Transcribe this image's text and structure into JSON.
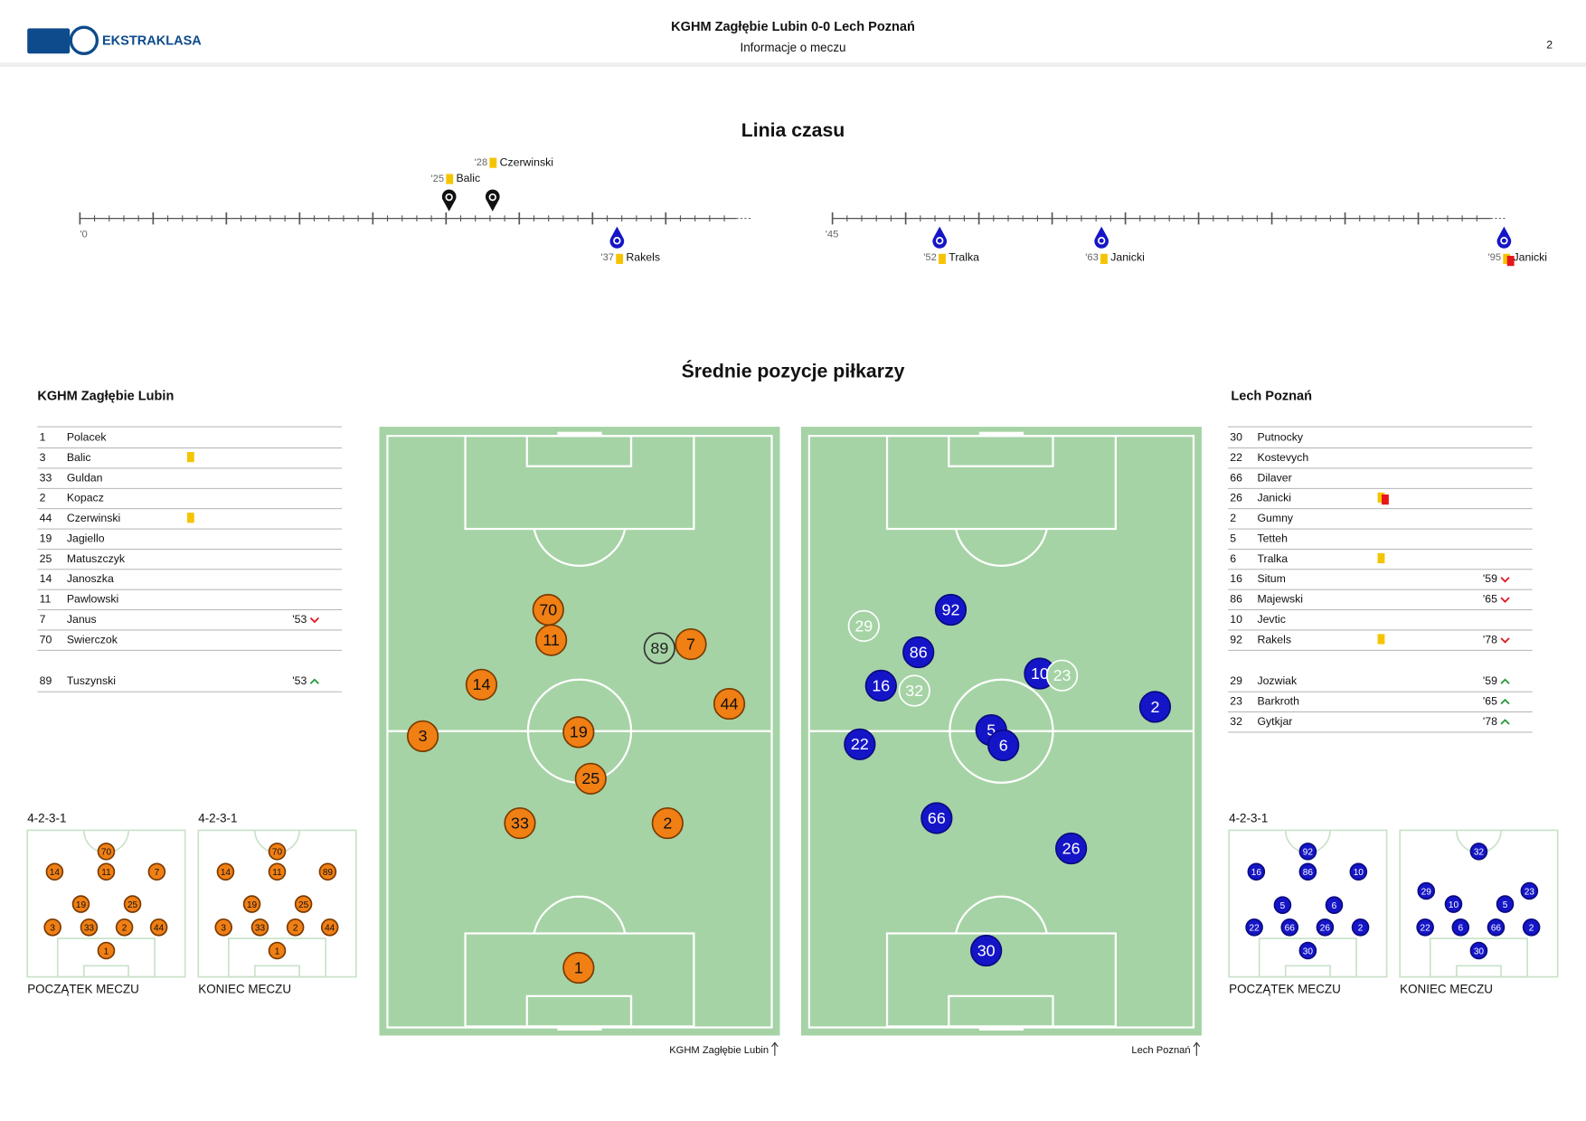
{
  "header": {
    "logo": "EKSTRAKLASA",
    "title": "KGHM Zagłębie Lubin 0-0  Lech Poznań",
    "subtitle": "Informacje o meczu",
    "page": "2"
  },
  "timeline": {
    "title": "Linia czasu",
    "first_half_start": "'0",
    "second_half_start": "'45",
    "events": [
      {
        "minute": "'25",
        "player": "Balic",
        "team": "home",
        "card": "yellow"
      },
      {
        "minute": "'28",
        "player": "Czerwinski",
        "team": "home",
        "card": "yellow"
      },
      {
        "minute": "'37",
        "player": "Rakels",
        "team": "away",
        "card": "yellow"
      },
      {
        "minute": "'52",
        "player": "Tralka",
        "team": "away",
        "card": "yellow"
      },
      {
        "minute": "'63",
        "player": "Janicki",
        "team": "away",
        "card": "yellow"
      },
      {
        "minute": "'95",
        "player": "Janicki",
        "team": "away",
        "card": "second-yellow"
      }
    ]
  },
  "positions": {
    "title": "Średnie pozycje piłkarzy",
    "home": {
      "name": "KGHM Zagłębie Lubin",
      "pitch_label": "KGHM Zagłębie Lubin",
      "starters": [
        {
          "no": "1",
          "name": "Polacek"
        },
        {
          "no": "3",
          "name": "Balic",
          "card": "yellow"
        },
        {
          "no": "33",
          "name": "Guldan"
        },
        {
          "no": "2",
          "name": "Kopacz"
        },
        {
          "no": "44",
          "name": "Czerwinski",
          "card": "yellow"
        },
        {
          "no": "19",
          "name": "Jagiello"
        },
        {
          "no": "25",
          "name": "Matuszczyk"
        },
        {
          "no": "14",
          "name": "Janoszka"
        },
        {
          "no": "11",
          "name": "Pawlowski"
        },
        {
          "no": "7",
          "name": "Janus",
          "minute": "'53",
          "sub": "out"
        },
        {
          "no": "70",
          "name": "Swierczok"
        }
      ],
      "subs": [
        {
          "no": "89",
          "name": "Tuszynski",
          "minute": "'53",
          "sub": "in"
        }
      ],
      "pitch": [
        {
          "no": "70"
        },
        {
          "no": "11"
        },
        {
          "no": "89",
          "sub": true
        },
        {
          "no": "7"
        },
        {
          "no": "14"
        },
        {
          "no": "44"
        },
        {
          "no": "3"
        },
        {
          "no": "19"
        },
        {
          "no": "25"
        },
        {
          "no": "33"
        },
        {
          "no": "2"
        },
        {
          "no": "1"
        }
      ],
      "formations": [
        {
          "formation": "4-2-3-1",
          "label": "POCZĄTEK MECZU",
          "players": [
            "70",
            "14",
            "11",
            "7",
            "19",
            "25",
            "3",
            "33",
            "2",
            "44",
            "1"
          ]
        },
        {
          "formation": "4-2-3-1",
          "label": "KONIEC MECZU",
          "players": [
            "70",
            "14",
            "11",
            "89",
            "19",
            "25",
            "3",
            "33",
            "2",
            "44",
            "1"
          ]
        }
      ]
    },
    "away": {
      "name": "Lech Poznań",
      "pitch_label": "Lech Poznań",
      "starters": [
        {
          "no": "30",
          "name": "Putnocky"
        },
        {
          "no": "22",
          "name": "Kostevych"
        },
        {
          "no": "66",
          "name": "Dilaver"
        },
        {
          "no": "26",
          "name": "Janicki",
          "card": "second-yellow"
        },
        {
          "no": "2",
          "name": "Gumny"
        },
        {
          "no": "5",
          "name": "Tetteh"
        },
        {
          "no": "6",
          "name": "Tralka",
          "card": "yellow"
        },
        {
          "no": "16",
          "name": "Situm",
          "minute": "'59",
          "sub": "out"
        },
        {
          "no": "86",
          "name": "Majewski",
          "minute": "'65",
          "sub": "out"
        },
        {
          "no": "10",
          "name": "Jevtic"
        },
        {
          "no": "92",
          "name": "Rakels",
          "card": "yellow",
          "minute": "'78",
          "sub": "out"
        }
      ],
      "subs": [
        {
          "no": "29",
          "name": "Jozwiak",
          "minute": "'59",
          "sub": "in"
        },
        {
          "no": "23",
          "name": "Barkroth",
          "minute": "'65",
          "sub": "in"
        },
        {
          "no": "32",
          "name": "Gytkjar",
          "minute": "'78",
          "sub": "in"
        }
      ],
      "pitch": [
        {
          "no": "29",
          "sub": true
        },
        {
          "no": "92"
        },
        {
          "no": "86"
        },
        {
          "no": "16"
        },
        {
          "no": "32",
          "sub": true
        },
        {
          "no": "10"
        },
        {
          "no": "23",
          "sub": true
        },
        {
          "no": "2"
        },
        {
          "no": "5"
        },
        {
          "no": "6"
        },
        {
          "no": "22"
        },
        {
          "no": "66"
        },
        {
          "no": "26"
        },
        {
          "no": "30"
        }
      ],
      "formations": [
        {
          "formation": "4-2-3-1",
          "label": "POCZĄTEK MECZU",
          "players": [
            "92",
            "16",
            "86",
            "10",
            "5",
            "6",
            "22",
            "66",
            "26",
            "2",
            "30"
          ]
        },
        {
          "label": "KONIEC MECZU",
          "players": [
            "32",
            "29",
            "23",
            "10",
            "5",
            "22",
            "6",
            "66",
            "2",
            "30"
          ]
        }
      ]
    }
  }
}
